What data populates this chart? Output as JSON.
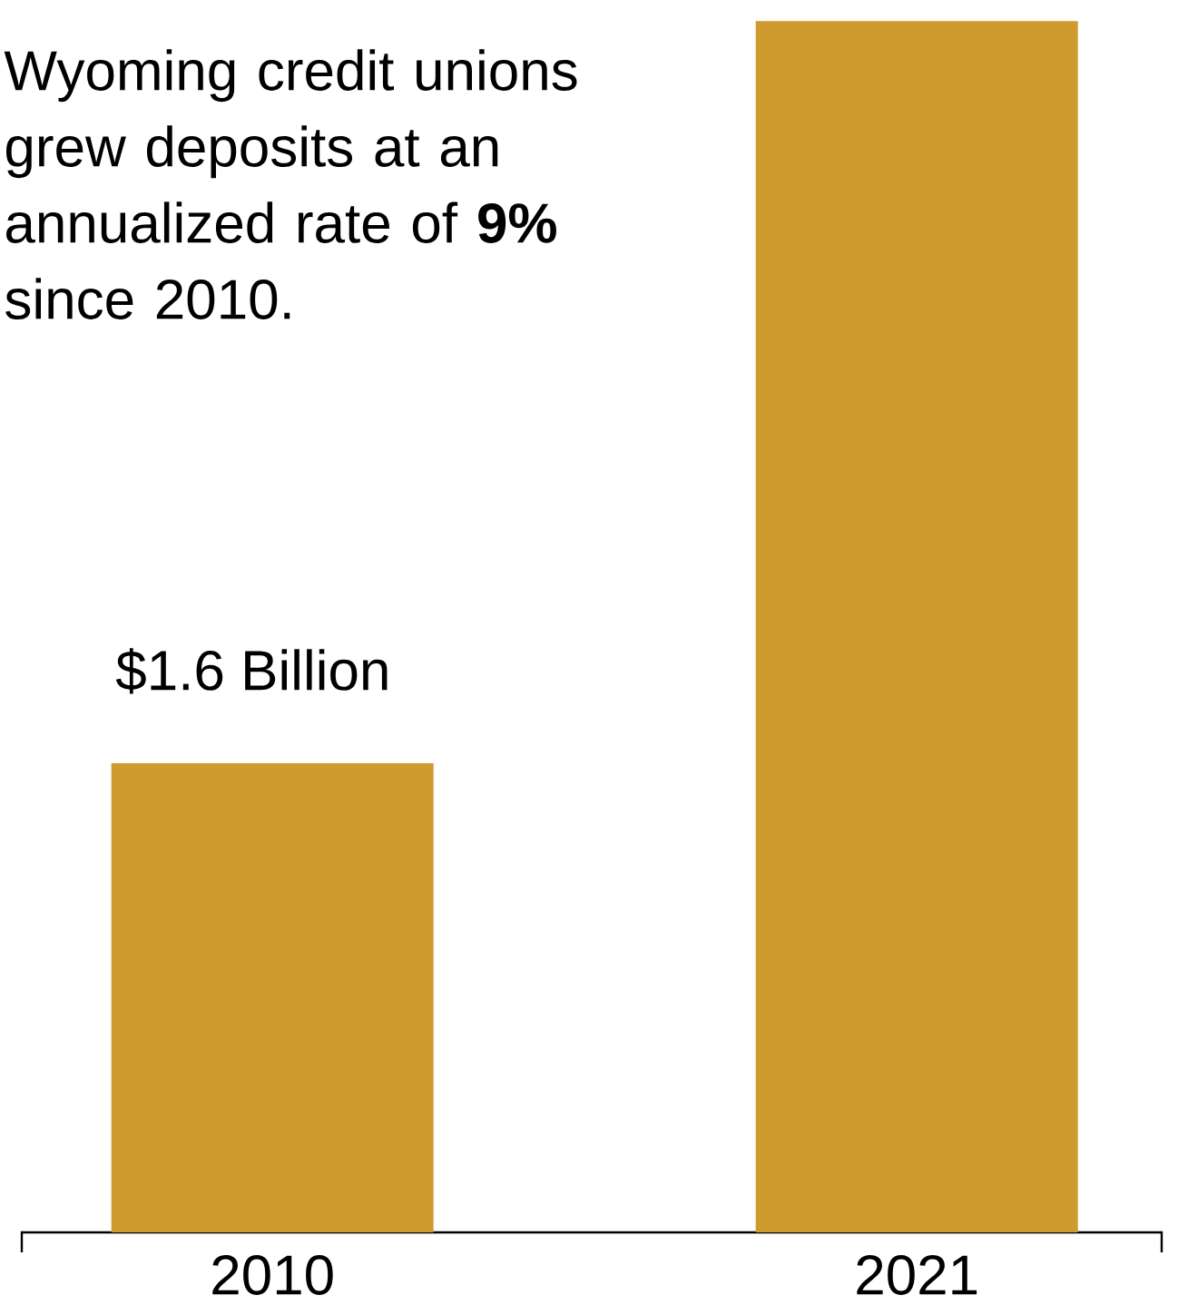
{
  "chart_data": {
    "type": "bar",
    "categories": [
      "2010",
      "2021"
    ],
    "values": [
      1.6,
      4.13
    ],
    "value_labels": [
      "$1.6 Billion",
      null
    ],
    "color": "#cf9a2e",
    "annotations": [
      "Wyoming credit unions grew deposits at an annualized rate of **9%** since 2010."
    ]
  }
}
